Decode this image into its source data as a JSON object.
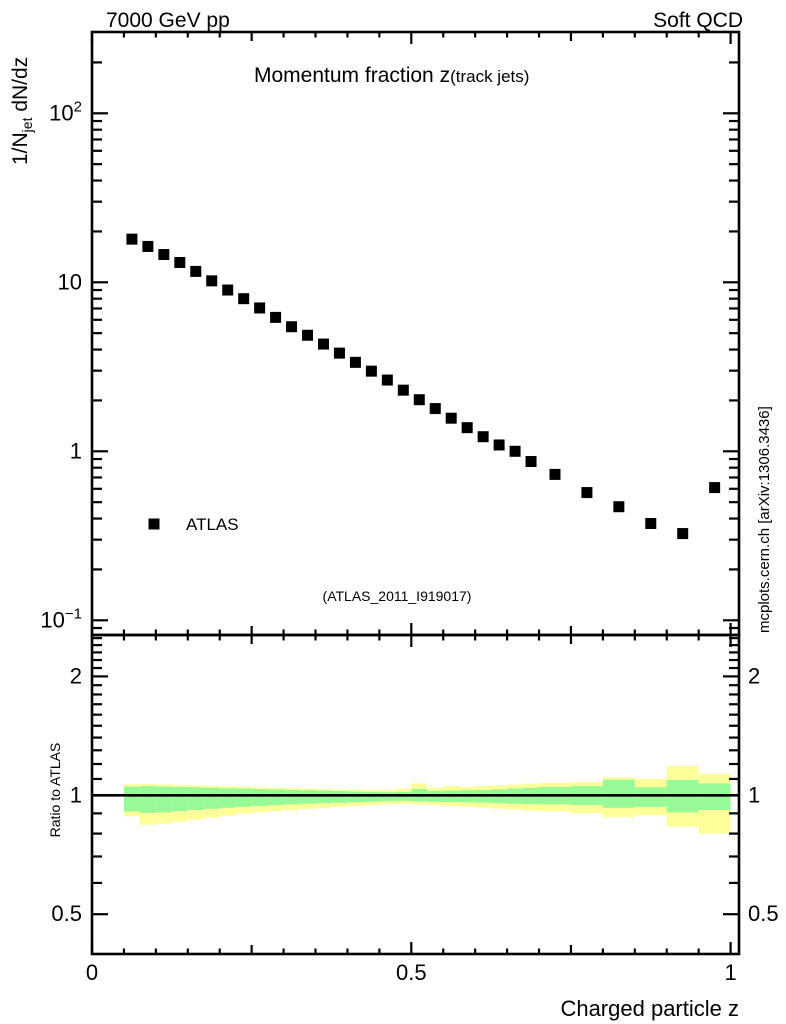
{
  "header": {
    "left_label": "7000 GeV pp",
    "right_label": "Soft QCD"
  },
  "main_panel": {
    "title": "Momentum fraction z",
    "title_suffix": "(track jets)",
    "y_axis_title": {
      "prefix": "1/N",
      "sub": "jet",
      "suffix": " dN/dz"
    },
    "legend_label": "ATLAS",
    "reference_label": "(ATLAS_2011_I919017)"
  },
  "ratio_panel": {
    "y_axis_title": "Ratio to ATLAS"
  },
  "x_axis_title": "Charged particle z",
  "watermark": "mcplots.cern.ch [arXiv:1306.3436]",
  "colors": {
    "marker": "#000000",
    "band_inner": "#98f998",
    "band_outer": "#ffff99",
    "ref_label": "#b3b3b3",
    "watermark": "#999999"
  },
  "chart_data": {
    "type": "scatter",
    "title": "Momentum fraction z (track jets)",
    "xlabel": "Charged particle z",
    "ylabel": "1/N_jet dN/dz",
    "x_range": [
      0,
      1.013
    ],
    "y_scale": "log",
    "y_range": [
      0.082,
      311
    ],
    "grid": false,
    "legend_position": "left-middle",
    "y_ticks": [
      {
        "value": 100,
        "base": "10",
        "sup": "2"
      },
      {
        "value": 10,
        "base": "10",
        "sup": ""
      },
      {
        "value": 1,
        "base": "1",
        "sup": ""
      },
      {
        "value": 0.1,
        "base": "10",
        "sup": "−1"
      }
    ],
    "x_ticks": [
      {
        "value": 0,
        "label": "0"
      },
      {
        "value": 0.5,
        "label": "0.5"
      },
      {
        "value": 1,
        "label": "1"
      }
    ],
    "series": [
      {
        "name": "ATLAS",
        "marker": "filled-square",
        "color": "#000000",
        "x": [
          0.0625,
          0.0875,
          0.1125,
          0.1375,
          0.1625,
          0.1875,
          0.2125,
          0.2375,
          0.2625,
          0.2875,
          0.3125,
          0.3375,
          0.3625,
          0.3875,
          0.4125,
          0.4375,
          0.4625,
          0.4875,
          0.5125,
          0.5375,
          0.5625,
          0.5875,
          0.6125,
          0.6375,
          0.6625,
          0.6875,
          0.725,
          0.775,
          0.825,
          0.875,
          0.925,
          0.975
        ],
        "y": [
          18.0,
          16.3,
          14.6,
          13.1,
          11.6,
          10.2,
          9.0,
          8.0,
          7.05,
          6.2,
          5.46,
          4.86,
          4.31,
          3.81,
          3.36,
          2.98,
          2.64,
          2.3,
          2.02,
          1.79,
          1.57,
          1.38,
          1.22,
          1.09,
          1.0,
          0.87,
          0.73,
          0.57,
          0.47,
          0.374,
          0.326,
          0.61
        ]
      }
    ],
    "ratio": {
      "ylabel": "Ratio to ATLAS",
      "y_scale": "log",
      "y_range": [
        0.4,
        2.55
      ],
      "reference_line": 1,
      "y_ticks": [
        {
          "value": 2,
          "label": "2"
        },
        {
          "value": 1,
          "label": "1"
        },
        {
          "value": 0.5,
          "label": "0.5"
        }
      ],
      "bands": {
        "bin_edges": [
          0.05,
          0.075,
          0.1,
          0.125,
          0.15,
          0.175,
          0.2,
          0.225,
          0.25,
          0.275,
          0.3,
          0.325,
          0.35,
          0.375,
          0.4,
          0.425,
          0.45,
          0.475,
          0.5,
          0.525,
          0.55,
          0.575,
          0.6,
          0.625,
          0.65,
          0.675,
          0.7,
          0.75,
          0.8,
          0.85,
          0.9,
          0.95,
          1.0
        ],
        "outer_lo": [
          0.885,
          0.842,
          0.848,
          0.858,
          0.868,
          0.878,
          0.888,
          0.898,
          0.905,
          0.912,
          0.918,
          0.924,
          0.93,
          0.935,
          0.94,
          0.944,
          0.948,
          0.952,
          0.948,
          0.945,
          0.94,
          0.936,
          0.93,
          0.925,
          0.92,
          0.915,
          0.91,
          0.9,
          0.88,
          0.89,
          0.833,
          0.8
        ],
        "inner_lo": [
          0.91,
          0.902,
          0.905,
          0.912,
          0.918,
          0.924,
          0.93,
          0.935,
          0.94,
          0.944,
          0.948,
          0.952,
          0.955,
          0.958,
          0.96,
          0.963,
          0.966,
          0.968,
          0.965,
          0.963,
          0.962,
          0.96,
          0.958,
          0.955,
          0.952,
          0.95,
          0.948,
          0.945,
          0.93,
          0.935,
          0.905,
          0.918
        ],
        "inner_hi": [
          1.052,
          1.055,
          1.052,
          1.05,
          1.048,
          1.045,
          1.042,
          1.04,
          1.037,
          1.035,
          1.032,
          1.03,
          1.028,
          1.025,
          1.022,
          1.02,
          1.018,
          1.02,
          1.037,
          1.025,
          1.028,
          1.03,
          1.032,
          1.035,
          1.04,
          1.045,
          1.05,
          1.055,
          1.095,
          1.048,
          1.094,
          1.072
        ],
        "outer_hi": [
          1.066,
          1.068,
          1.065,
          1.062,
          1.06,
          1.057,
          1.054,
          1.051,
          1.048,
          1.045,
          1.043,
          1.04,
          1.038,
          1.036,
          1.034,
          1.032,
          1.032,
          1.04,
          1.072,
          1.045,
          1.056,
          1.05,
          1.055,
          1.06,
          1.065,
          1.07,
          1.075,
          1.08,
          1.11,
          1.1,
          1.187,
          1.132
        ]
      }
    }
  }
}
